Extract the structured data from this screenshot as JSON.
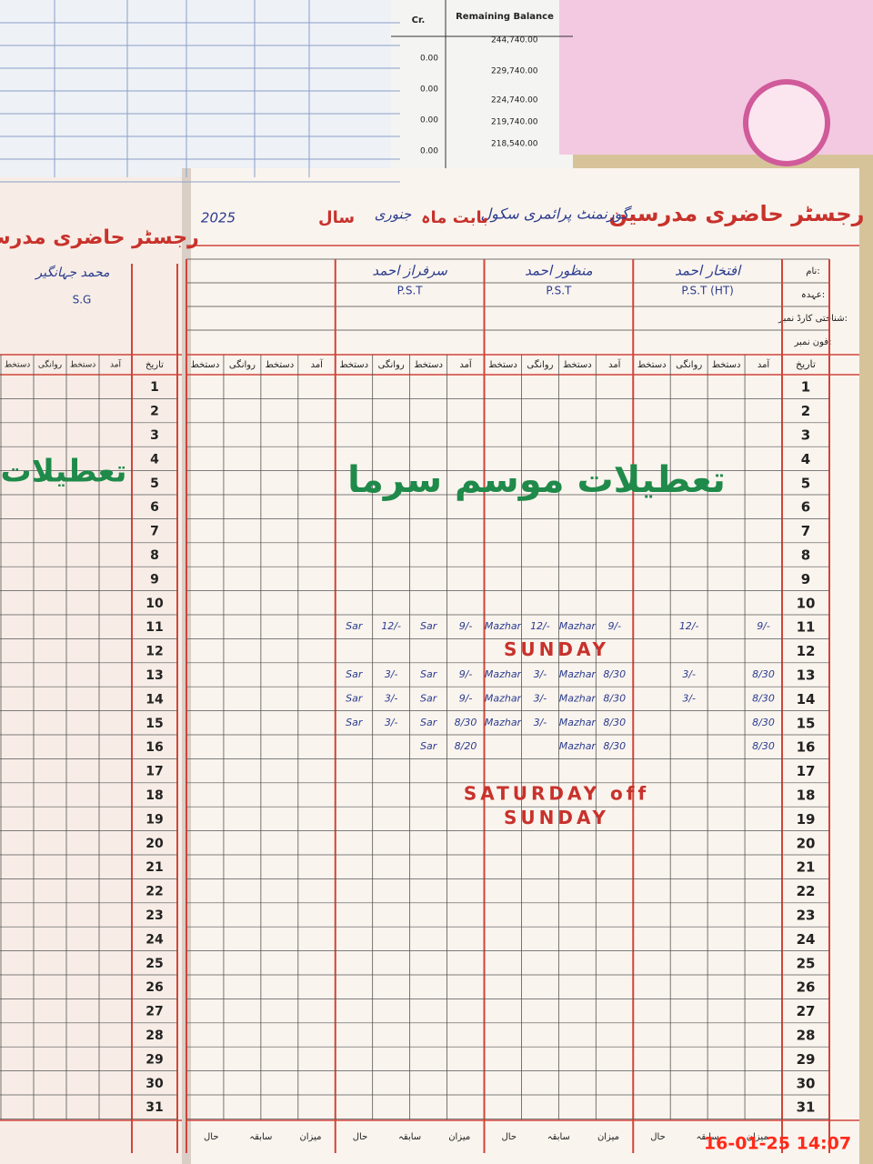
{
  "timestamp": "16-01-25 14:07",
  "top_paper": {
    "headers": [
      "Cr.",
      "Remaining Balance"
    ],
    "credits": [
      "0.00",
      "0.00",
      "0.00",
      "0.00"
    ],
    "balances": [
      "244,740.00",
      "229,740.00",
      "224,740.00",
      "219,740.00",
      "218,540.00"
    ]
  },
  "left_page": {
    "title": "رجسٹر حاضری مدرسین",
    "name": "محمد جہانگیر",
    "designation": "S.G",
    "note": "تعطیلات"
  },
  "right_page": {
    "title": "رجسٹر حاضری مدرسین",
    "school": "گورنمنٹ پرائمری سکول",
    "month_label": "بابت ماہ",
    "month": "جنوری",
    "year_label": "سال",
    "year": "2025",
    "profile_labels": [
      "نام:",
      "عہدہ:",
      "شناختی کارڈ نمبر:",
      "فون نمبر:"
    ],
    "date_header": "تاریخ",
    "column_headers": [
      "آمد",
      "دستخط",
      "روانگی",
      "دستخط"
    ],
    "teachers": [
      {
        "name": "افتخار احمد",
        "designation": "P.S.T (HT)",
        "entries": [
          {
            "date": 11,
            "cells": [
              "9/-",
              null,
              "12/-",
              null
            ]
          },
          {
            "date": 13,
            "cells": [
              "8/30",
              null,
              "3/-",
              null
            ]
          },
          {
            "date": 14,
            "cells": [
              "8/30",
              null,
              "3/-",
              null
            ]
          },
          {
            "date": 15,
            "cells": [
              "8/30",
              null,
              null,
              null
            ]
          },
          {
            "date": 16,
            "cells": [
              "8/30",
              null,
              null,
              null
            ]
          }
        ]
      },
      {
        "name": "منظور احمد",
        "designation": "P.S.T",
        "entries": [
          {
            "date": 11,
            "cells": [
              "9/-",
              "Mazhar",
              "12/-",
              "Mazhar"
            ]
          },
          {
            "date": 13,
            "cells": [
              "8/30",
              "Mazhar",
              "3/-",
              "Mazhar"
            ]
          },
          {
            "date": 14,
            "cells": [
              "8/30",
              "Mazhar",
              "3/-",
              "Mazhar"
            ]
          },
          {
            "date": 15,
            "cells": [
              "8/30",
              "Mazhar",
              "3/-",
              "Mazhar"
            ]
          },
          {
            "date": 16,
            "cells": [
              "8/30",
              "Mazhar",
              null,
              null
            ]
          }
        ]
      },
      {
        "name": "سرفراز احمد",
        "designation": "P.S.T",
        "entries": [
          {
            "date": 11,
            "cells": [
              "9/-",
              "Sar",
              "12/-",
              "Sar"
            ]
          },
          {
            "date": 13,
            "cells": [
              "9/-",
              "Sar",
              "3/-",
              "Sar"
            ]
          },
          {
            "date": 14,
            "cells": [
              "9/-",
              "Sar",
              "3/-",
              "Sar"
            ]
          },
          {
            "date": 15,
            "cells": [
              "8/30",
              "Sar",
              "3/-",
              "Sar"
            ]
          },
          {
            "date": 16,
            "cells": [
              "8/20",
              "Sar",
              null,
              null
            ]
          }
        ]
      }
    ],
    "dates": [
      1,
      2,
      3,
      4,
      5,
      6,
      7,
      8,
      9,
      10,
      11,
      12,
      13,
      14,
      15,
      16,
      17,
      18,
      19,
      20,
      21,
      22,
      23,
      24,
      25,
      26,
      27,
      28,
      29,
      30,
      31
    ],
    "holiday_note": "تعطیلات موسم سرما",
    "notes": [
      {
        "date": 12,
        "text": "SUNDAY"
      },
      {
        "date": 18,
        "text": "SATURDAY off"
      },
      {
        "date": 19,
        "text": "SUNDAY"
      }
    ],
    "footer_labels": [
      "میزان",
      "سابقہ",
      "حال"
    ]
  }
}
